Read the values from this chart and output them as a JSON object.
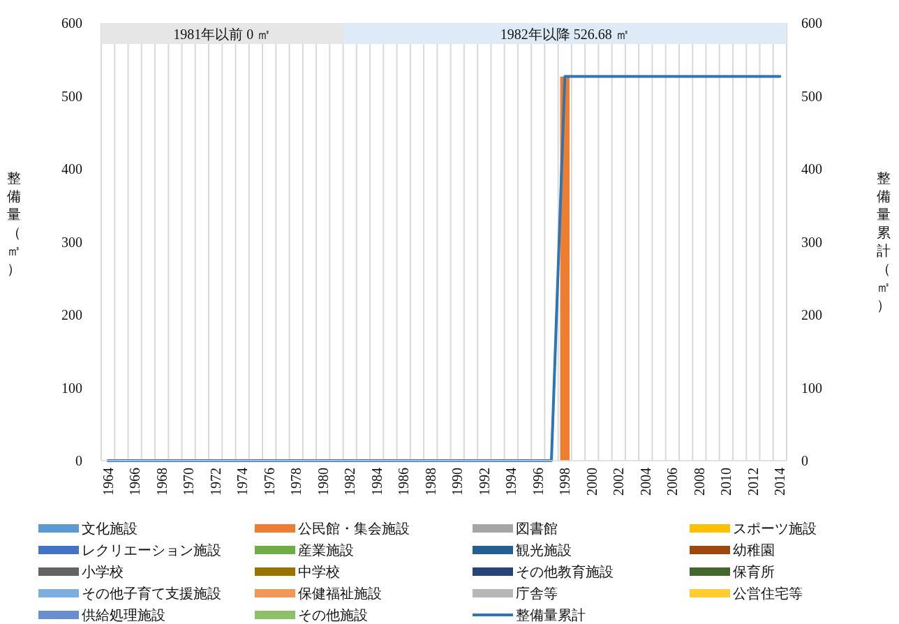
{
  "chart_data": {
    "type": "bar",
    "stacked": true,
    "ylabel": "整備量（㎡）",
    "y2label": "整備量累計（㎡）",
    "x": [
      1964,
      1965,
      1966,
      1967,
      1968,
      1969,
      1970,
      1971,
      1972,
      1973,
      1974,
      1975,
      1976,
      1977,
      1978,
      1979,
      1980,
      1981,
      1982,
      1983,
      1984,
      1985,
      1986,
      1987,
      1988,
      1989,
      1990,
      1991,
      1992,
      1993,
      1994,
      1995,
      1996,
      1997,
      1998,
      1999,
      2000,
      2001,
      2002,
      2003,
      2004,
      2005,
      2006,
      2007,
      2008,
      2009,
      2010,
      2011,
      2012,
      2013,
      2014
    ],
    "xlim": [
      1963.5,
      2014.5
    ],
    "xticks": [
      1964,
      1966,
      1968,
      1970,
      1972,
      1974,
      1976,
      1978,
      1980,
      1982,
      1984,
      1986,
      1988,
      1990,
      1992,
      1994,
      1996,
      1998,
      2000,
      2002,
      2004,
      2006,
      2008,
      2010,
      2012,
      2014
    ],
    "ylim": [
      0,
      600
    ],
    "yticks": [
      0,
      100,
      200,
      300,
      400,
      500,
      600
    ],
    "y2lim": [
      0,
      600
    ],
    "y2ticks": [
      0,
      100,
      200,
      300,
      400,
      500,
      600
    ],
    "grid": "x",
    "legend": "bottom",
    "bands": [
      {
        "axis": "x",
        "from": 1963.5,
        "to": 1981.5,
        "label": "1981年以前 0 ㎡",
        "color": "#e6e6e6"
      },
      {
        "axis": "x",
        "from": 1981.5,
        "to": 2014.5,
        "label": "1982年以降 526.68 ㎡",
        "color": "#deebf7"
      }
    ],
    "series": [
      {
        "name": "文化施設",
        "color": "#5b9bd5",
        "values": [
          0,
          0,
          0,
          0,
          0,
          0,
          0,
          0,
          0,
          0,
          0,
          0,
          0,
          0,
          0,
          0,
          0,
          0,
          0,
          0,
          0,
          0,
          0,
          0,
          0,
          0,
          0,
          0,
          0,
          0,
          0,
          0,
          0,
          0,
          0,
          0,
          0,
          0,
          0,
          0,
          0,
          0,
          0,
          0,
          0,
          0,
          0,
          0,
          0,
          0,
          0
        ]
      },
      {
        "name": "公民館・集会施設",
        "color": "#ed7d31",
        "values": [
          0,
          0,
          0,
          0,
          0,
          0,
          0,
          0,
          0,
          0,
          0,
          0,
          0,
          0,
          0,
          0,
          0,
          0,
          0,
          0,
          0,
          0,
          0,
          0,
          0,
          0,
          0,
          0,
          0,
          0,
          0,
          0,
          0,
          0,
          526.68,
          0,
          0,
          0,
          0,
          0,
          0,
          0,
          0,
          0,
          0,
          0,
          0,
          0,
          0,
          0,
          0
        ]
      },
      {
        "name": "図書館",
        "color": "#a5a5a5",
        "values": [
          0,
          0,
          0,
          0,
          0,
          0,
          0,
          0,
          0,
          0,
          0,
          0,
          0,
          0,
          0,
          0,
          0,
          0,
          0,
          0,
          0,
          0,
          0,
          0,
          0,
          0,
          0,
          0,
          0,
          0,
          0,
          0,
          0,
          0,
          0,
          0,
          0,
          0,
          0,
          0,
          0,
          0,
          0,
          0,
          0,
          0,
          0,
          0,
          0,
          0,
          0
        ]
      },
      {
        "name": "スポーツ施設",
        "color": "#ffc000",
        "values": [
          0,
          0,
          0,
          0,
          0,
          0,
          0,
          0,
          0,
          0,
          0,
          0,
          0,
          0,
          0,
          0,
          0,
          0,
          0,
          0,
          0,
          0,
          0,
          0,
          0,
          0,
          0,
          0,
          0,
          0,
          0,
          0,
          0,
          0,
          0,
          0,
          0,
          0,
          0,
          0,
          0,
          0,
          0,
          0,
          0,
          0,
          0,
          0,
          0,
          0,
          0
        ]
      },
      {
        "name": "レクリエーション施設",
        "color": "#4472c4",
        "values": [
          0,
          0,
          0,
          0,
          0,
          0,
          0,
          0,
          0,
          0,
          0,
          0,
          0,
          0,
          0,
          0,
          0,
          0,
          0,
          0,
          0,
          0,
          0,
          0,
          0,
          0,
          0,
          0,
          0,
          0,
          0,
          0,
          0,
          0,
          0,
          0,
          0,
          0,
          0,
          0,
          0,
          0,
          0,
          0,
          0,
          0,
          0,
          0,
          0,
          0,
          0
        ]
      },
      {
        "name": "産業施設",
        "color": "#70ad47",
        "values": [
          0,
          0,
          0,
          0,
          0,
          0,
          0,
          0,
          0,
          0,
          0,
          0,
          0,
          0,
          0,
          0,
          0,
          0,
          0,
          0,
          0,
          0,
          0,
          0,
          0,
          0,
          0,
          0,
          0,
          0,
          0,
          0,
          0,
          0,
          0,
          0,
          0,
          0,
          0,
          0,
          0,
          0,
          0,
          0,
          0,
          0,
          0,
          0,
          0,
          0,
          0
        ]
      },
      {
        "name": "観光施設",
        "color": "#255e91",
        "values": [
          0,
          0,
          0,
          0,
          0,
          0,
          0,
          0,
          0,
          0,
          0,
          0,
          0,
          0,
          0,
          0,
          0,
          0,
          0,
          0,
          0,
          0,
          0,
          0,
          0,
          0,
          0,
          0,
          0,
          0,
          0,
          0,
          0,
          0,
          0,
          0,
          0,
          0,
          0,
          0,
          0,
          0,
          0,
          0,
          0,
          0,
          0,
          0,
          0,
          0,
          0
        ]
      },
      {
        "name": "幼稚園",
        "color": "#9e480e",
        "values": [
          0,
          0,
          0,
          0,
          0,
          0,
          0,
          0,
          0,
          0,
          0,
          0,
          0,
          0,
          0,
          0,
          0,
          0,
          0,
          0,
          0,
          0,
          0,
          0,
          0,
          0,
          0,
          0,
          0,
          0,
          0,
          0,
          0,
          0,
          0,
          0,
          0,
          0,
          0,
          0,
          0,
          0,
          0,
          0,
          0,
          0,
          0,
          0,
          0,
          0,
          0
        ]
      },
      {
        "name": "小学校",
        "color": "#636363",
        "values": [
          0,
          0,
          0,
          0,
          0,
          0,
          0,
          0,
          0,
          0,
          0,
          0,
          0,
          0,
          0,
          0,
          0,
          0,
          0,
          0,
          0,
          0,
          0,
          0,
          0,
          0,
          0,
          0,
          0,
          0,
          0,
          0,
          0,
          0,
          0,
          0,
          0,
          0,
          0,
          0,
          0,
          0,
          0,
          0,
          0,
          0,
          0,
          0,
          0,
          0,
          0
        ]
      },
      {
        "name": "中学校",
        "color": "#997300",
        "values": [
          0,
          0,
          0,
          0,
          0,
          0,
          0,
          0,
          0,
          0,
          0,
          0,
          0,
          0,
          0,
          0,
          0,
          0,
          0,
          0,
          0,
          0,
          0,
          0,
          0,
          0,
          0,
          0,
          0,
          0,
          0,
          0,
          0,
          0,
          0,
          0,
          0,
          0,
          0,
          0,
          0,
          0,
          0,
          0,
          0,
          0,
          0,
          0,
          0,
          0,
          0
        ]
      },
      {
        "name": "その他教育施設",
        "color": "#264478",
        "values": [
          0,
          0,
          0,
          0,
          0,
          0,
          0,
          0,
          0,
          0,
          0,
          0,
          0,
          0,
          0,
          0,
          0,
          0,
          0,
          0,
          0,
          0,
          0,
          0,
          0,
          0,
          0,
          0,
          0,
          0,
          0,
          0,
          0,
          0,
          0,
          0,
          0,
          0,
          0,
          0,
          0,
          0,
          0,
          0,
          0,
          0,
          0,
          0,
          0,
          0,
          0
        ]
      },
      {
        "name": "保育所",
        "color": "#43682b",
        "values": [
          0,
          0,
          0,
          0,
          0,
          0,
          0,
          0,
          0,
          0,
          0,
          0,
          0,
          0,
          0,
          0,
          0,
          0,
          0,
          0,
          0,
          0,
          0,
          0,
          0,
          0,
          0,
          0,
          0,
          0,
          0,
          0,
          0,
          0,
          0,
          0,
          0,
          0,
          0,
          0,
          0,
          0,
          0,
          0,
          0,
          0,
          0,
          0,
          0,
          0,
          0
        ]
      },
      {
        "name": "その他子育て支援施設",
        "color": "#7cafdd",
        "values": [
          0,
          0,
          0,
          0,
          0,
          0,
          0,
          0,
          0,
          0,
          0,
          0,
          0,
          0,
          0,
          0,
          0,
          0,
          0,
          0,
          0,
          0,
          0,
          0,
          0,
          0,
          0,
          0,
          0,
          0,
          0,
          0,
          0,
          0,
          0,
          0,
          0,
          0,
          0,
          0,
          0,
          0,
          0,
          0,
          0,
          0,
          0,
          0,
          0,
          0,
          0
        ]
      },
      {
        "name": "保健福祉施設",
        "color": "#f1975a",
        "values": [
          0,
          0,
          0,
          0,
          0,
          0,
          0,
          0,
          0,
          0,
          0,
          0,
          0,
          0,
          0,
          0,
          0,
          0,
          0,
          0,
          0,
          0,
          0,
          0,
          0,
          0,
          0,
          0,
          0,
          0,
          0,
          0,
          0,
          0,
          0,
          0,
          0,
          0,
          0,
          0,
          0,
          0,
          0,
          0,
          0,
          0,
          0,
          0,
          0,
          0,
          0
        ]
      },
      {
        "name": "庁舎等",
        "color": "#b7b7b7",
        "values": [
          0,
          0,
          0,
          0,
          0,
          0,
          0,
          0,
          0,
          0,
          0,
          0,
          0,
          0,
          0,
          0,
          0,
          0,
          0,
          0,
          0,
          0,
          0,
          0,
          0,
          0,
          0,
          0,
          0,
          0,
          0,
          0,
          0,
          0,
          0,
          0,
          0,
          0,
          0,
          0,
          0,
          0,
          0,
          0,
          0,
          0,
          0,
          0,
          0,
          0,
          0
        ]
      },
      {
        "name": "公営住宅等",
        "color": "#ffcd33",
        "values": [
          0,
          0,
          0,
          0,
          0,
          0,
          0,
          0,
          0,
          0,
          0,
          0,
          0,
          0,
          0,
          0,
          0,
          0,
          0,
          0,
          0,
          0,
          0,
          0,
          0,
          0,
          0,
          0,
          0,
          0,
          0,
          0,
          0,
          0,
          0,
          0,
          0,
          0,
          0,
          0,
          0,
          0,
          0,
          0,
          0,
          0,
          0,
          0,
          0,
          0,
          0
        ]
      },
      {
        "name": "供給処理施設",
        "color": "#698ed0",
        "values": [
          0,
          0,
          0,
          0,
          0,
          0,
          0,
          0,
          0,
          0,
          0,
          0,
          0,
          0,
          0,
          0,
          0,
          0,
          0,
          0,
          0,
          0,
          0,
          0,
          0,
          0,
          0,
          0,
          0,
          0,
          0,
          0,
          0,
          0,
          0,
          0,
          0,
          0,
          0,
          0,
          0,
          0,
          0,
          0,
          0,
          0,
          0,
          0,
          0,
          0,
          0
        ]
      },
      {
        "name": "その他施設",
        "color": "#8cc168",
        "values": [
          0,
          0,
          0,
          0,
          0,
          0,
          0,
          0,
          0,
          0,
          0,
          0,
          0,
          0,
          0,
          0,
          0,
          0,
          0,
          0,
          0,
          0,
          0,
          0,
          0,
          0,
          0,
          0,
          0,
          0,
          0,
          0,
          0,
          0,
          0,
          0,
          0,
          0,
          0,
          0,
          0,
          0,
          0,
          0,
          0,
          0,
          0,
          0,
          0,
          0,
          0
        ]
      },
      {
        "name": "整備量累計",
        "color": "#2e75b6",
        "type": "line",
        "axis": "y2",
        "values": [
          0,
          0,
          0,
          0,
          0,
          0,
          0,
          0,
          0,
          0,
          0,
          0,
          0,
          0,
          0,
          0,
          0,
          0,
          0,
          0,
          0,
          0,
          0,
          0,
          0,
          0,
          0,
          0,
          0,
          0,
          0,
          0,
          0,
          0,
          526.68,
          526.68,
          526.68,
          526.68,
          526.68,
          526.68,
          526.68,
          526.68,
          526.68,
          526.68,
          526.68,
          526.68,
          526.68,
          526.68,
          526.68,
          526.68,
          526.68
        ]
      }
    ]
  }
}
